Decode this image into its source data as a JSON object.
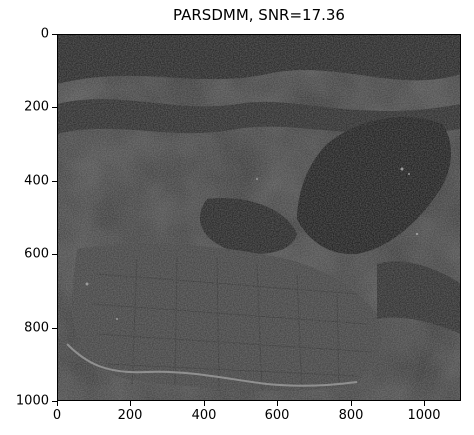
{
  "title": "PARSDMM, SNR=17.36",
  "image": {
    "description_colormap": "grayscale",
    "x_range": [
      0,
      1100
    ],
    "y_range": [
      0,
      1000
    ],
    "y_inverted": true
  },
  "axes": {
    "x_ticks": [
      "0",
      "200",
      "400",
      "600",
      "800",
      "1000"
    ],
    "y_ticks": [
      "0",
      "200",
      "400",
      "600",
      "800",
      "1000"
    ]
  }
}
